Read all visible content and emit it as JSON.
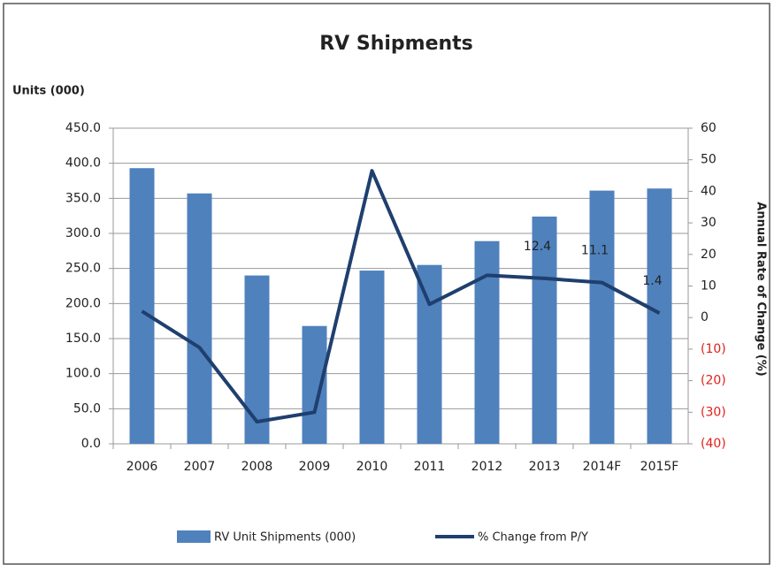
{
  "chart_data": {
    "type": "bar_line",
    "title": "RV Shipments",
    "y_label": "Units (000)",
    "y2_label": "Annual Rate of Change (%)",
    "categories": [
      "2006",
      "2007",
      "2008",
      "2009",
      "2010",
      "2011",
      "2012",
      "2013",
      "2014F",
      "2015F"
    ],
    "series": [
      {
        "name": "RV Unit Shipments (000)",
        "color": "#4f81bd",
        "type": "bar",
        "values": [
          393,
          357,
          240,
          168,
          247,
          255,
          289,
          324,
          361,
          364
        ]
      },
      {
        "name": "% Change from P/Y",
        "color": "#1f3f6e",
        "type": "line",
        "axis": "y2",
        "values": [
          2,
          -9.5,
          -33,
          -30,
          46.5,
          4.2,
          13.4,
          12.4,
          11.1,
          1.4
        ],
        "value_labels": [
          null,
          null,
          null,
          null,
          null,
          null,
          null,
          "12.4",
          "11.1",
          "1.4"
        ]
      }
    ],
    "ylim": [
      0,
      450
    ],
    "yticks": [
      {
        "value": 0,
        "label": "0.0"
      },
      {
        "value": 50,
        "label": "50.0"
      },
      {
        "value": 100,
        "label": "100.0"
      },
      {
        "value": 150,
        "label": "150.0"
      },
      {
        "value": 200,
        "label": "200.0"
      },
      {
        "value": 250,
        "label": "250.0"
      },
      {
        "value": 300,
        "label": "300.0"
      },
      {
        "value": 350,
        "label": "350.0"
      },
      {
        "value": 400,
        "label": "400.0"
      },
      {
        "value": 450,
        "label": "450.0"
      }
    ],
    "y2lim": [
      -40,
      60
    ],
    "y2ticks": [
      60,
      50,
      40,
      30,
      20,
      10,
      0,
      {
        "value": -10,
        "label": "(10)"
      },
      {
        "value": -20,
        "label": "(20)"
      },
      {
        "value": -30,
        "label": "(30)"
      },
      {
        "value": -40,
        "label": "(40)"
      }
    ],
    "negative_tick_color": "#e0201b",
    "grid": true,
    "legend": "bottom"
  }
}
